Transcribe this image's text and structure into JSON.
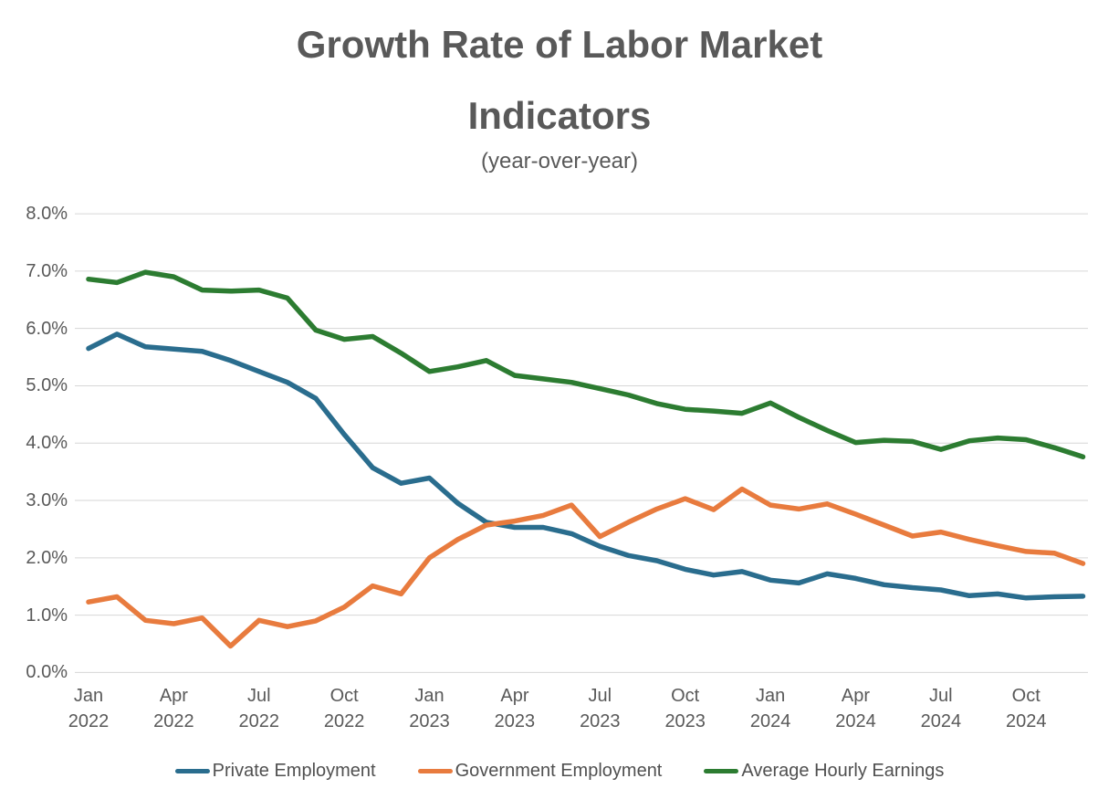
{
  "chart_data": {
    "type": "line",
    "title": "Growth Rate of Labor Market Indicators",
    "subtitle": "(year-over-year)",
    "x": [
      "Jan 2022",
      "Feb 2022",
      "Mar 2022",
      "Apr 2022",
      "May 2022",
      "Jun 2022",
      "Jul 2022",
      "Aug 2022",
      "Sep 2022",
      "Oct 2022",
      "Nov 2022",
      "Dec 2022",
      "Jan 2023",
      "Feb 2023",
      "Mar 2023",
      "Apr 2023",
      "May 2023",
      "Jun 2023",
      "Jul 2023",
      "Aug 2023",
      "Sep 2023",
      "Oct 2023",
      "Nov 2023",
      "Dec 2023",
      "Jan 2024",
      "Feb 2024",
      "Mar 2024",
      "Apr 2024",
      "May 2024",
      "Jun 2024",
      "Jul 2024",
      "Aug 2024",
      "Sep 2024",
      "Oct 2024",
      "Nov 2024",
      "Dec 2024"
    ],
    "x_tick_every_n_months": 3,
    "y_tick_labels": [
      "0.0%",
      "1.0%",
      "2.0%",
      "3.0%",
      "4.0%",
      "5.0%",
      "6.0%",
      "7.0%",
      "8.0%"
    ],
    "ylim": [
      0,
      8
    ],
    "grid": "horizontal",
    "gridline_color": "#d6d6d6",
    "legend_position": "bottom",
    "series": [
      {
        "name": "Private Employment",
        "color": "#2A6D8E",
        "values": [
          5.65,
          5.9,
          5.68,
          5.64,
          5.6,
          5.44,
          5.25,
          5.06,
          4.78,
          4.15,
          3.57,
          3.3,
          3.39,
          2.95,
          2.62,
          2.53,
          2.53,
          2.42,
          2.2,
          2.04,
          1.95,
          1.8,
          1.7,
          1.76,
          1.61,
          1.56,
          1.72,
          1.64,
          1.53,
          1.48,
          1.44,
          1.34,
          1.37,
          1.3,
          1.32,
          1.33
        ]
      },
      {
        "name": "Government Employment",
        "color": "#E87B3E",
        "values": [
          1.23,
          1.32,
          0.91,
          0.85,
          0.95,
          0.46,
          0.91,
          0.8,
          0.9,
          1.14,
          1.51,
          1.37,
          2.0,
          2.32,
          2.57,
          2.64,
          2.74,
          2.92,
          2.37,
          2.62,
          2.85,
          3.03,
          2.84,
          3.2,
          2.92,
          2.85,
          2.94,
          2.76,
          2.57,
          2.38,
          2.45,
          2.32,
          2.21,
          2.11,
          2.08,
          1.9
        ]
      },
      {
        "name": "Average Hourly Earnings",
        "color": "#2C7C31",
        "values": [
          6.86,
          6.8,
          6.98,
          6.9,
          6.67,
          6.65,
          6.67,
          6.53,
          5.97,
          5.81,
          5.86,
          5.57,
          5.25,
          5.33,
          5.44,
          5.18,
          5.12,
          5.06,
          4.95,
          4.84,
          4.69,
          4.59,
          4.56,
          4.52,
          4.7,
          4.45,
          4.22,
          4.01,
          4.05,
          4.03,
          3.89,
          4.04,
          4.09,
          4.06,
          3.92,
          3.76
        ]
      }
    ]
  }
}
